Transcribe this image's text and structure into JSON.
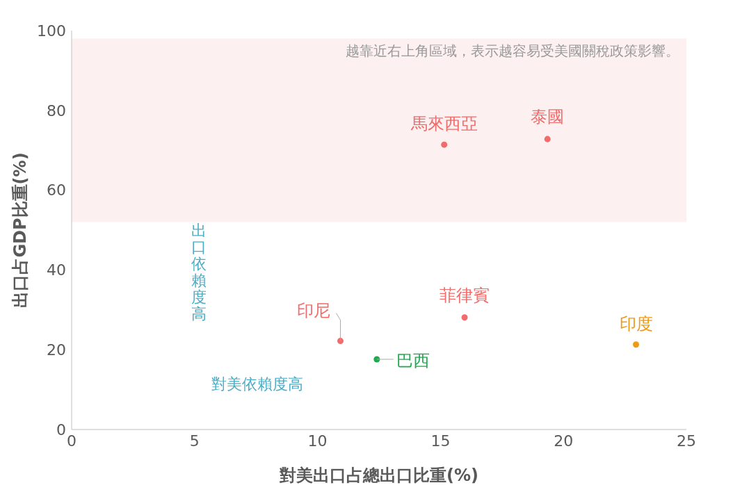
{
  "chart_data": {
    "type": "scatter",
    "xlabel": "對美出口占總出口比重(%)",
    "ylabel": "出口占GDP比重(%)",
    "xlim": [
      0,
      25
    ],
    "xticks": [
      0,
      5,
      10,
      15,
      20,
      25
    ],
    "ylim": [
      0,
      100
    ],
    "yticks": [
      0,
      20,
      40,
      60,
      80,
      100
    ],
    "grid": false,
    "legend": false,
    "marker": "circle",
    "series": [
      {
        "name": "馬來西亞",
        "color": "#f26b6b",
        "x": [
          15.15
        ],
        "values": [
          71.4
        ]
      },
      {
        "name": "泰國",
        "color": "#f26b6b",
        "x": [
          19.35
        ],
        "values": [
          72.8
        ]
      },
      {
        "name": "菲律賓",
        "color": "#f26b6b",
        "x": [
          15.98
        ],
        "values": [
          28.1
        ]
      },
      {
        "name": "印度",
        "color": "#ef9a12",
        "x": [
          22.95
        ],
        "values": [
          21.3
        ]
      },
      {
        "name": "印尼",
        "color": "#f26b6b",
        "x": [
          10.93
        ],
        "values": [
          22.2
        ]
      },
      {
        "name": "巴西",
        "color": "#1aab4b",
        "x": [
          12.41
        ],
        "values": [
          17.6
        ]
      }
    ],
    "bands": [
      {
        "axis": "y",
        "from": 52,
        "to": 98,
        "color": "#fdf0f0",
        "label": "越靠近右上角區域，表示越容易受美國關稅政策影響。"
      }
    ],
    "annotations": [
      "出口依賴度高",
      "對美依賴度高"
    ]
  }
}
